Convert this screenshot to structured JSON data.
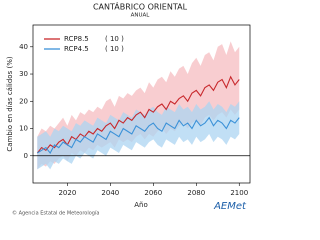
{
  "chart_data": {
    "type": "line",
    "title": "CANTÁBRICO ORIENTAL",
    "subtitle": "ANUAL",
    "x_label": "Año",
    "y_label": "Cambio en días cálidos (%)",
    "footer": "© Agencia Estatal de Meteorología",
    "logo": "AEMet",
    "x": [
      2006,
      2008,
      2010,
      2012,
      2014,
      2016,
      2018,
      2020,
      2022,
      2024,
      2026,
      2028,
      2030,
      2032,
      2034,
      2036,
      2038,
      2040,
      2042,
      2044,
      2046,
      2048,
      2050,
      2052,
      2054,
      2056,
      2058,
      2060,
      2062,
      2064,
      2066,
      2068,
      2070,
      2072,
      2074,
      2076,
      2078,
      2080,
      2082,
      2084,
      2086,
      2088,
      2090,
      2092,
      2094,
      2096,
      2098,
      2100
    ],
    "series": [
      {
        "name": "RCP8.5",
        "count_label": "( 10 )",
        "color": "#c8282c",
        "band_color": "#f5bcc0",
        "values": [
          1,
          3,
          2,
          4,
          3,
          5,
          6,
          4,
          7,
          6,
          8,
          7,
          9,
          8,
          10,
          9,
          11,
          12,
          10,
          13,
          12,
          14,
          13,
          15,
          16,
          14,
          17,
          16,
          18,
          19,
          17,
          20,
          19,
          21,
          22,
          20,
          23,
          24,
          22,
          25,
          26,
          24,
          27,
          28,
          25,
          29,
          26,
          28
        ],
        "upper": [
          7,
          10,
          9,
          11,
          10,
          12,
          14,
          11,
          15,
          13,
          16,
          15,
          17,
          16,
          18,
          17,
          20,
          21,
          18,
          22,
          21,
          23,
          22,
          24,
          25,
          23,
          27,
          25,
          28,
          29,
          27,
          31,
          29,
          32,
          33,
          30,
          34,
          36,
          33,
          37,
          38,
          35,
          40,
          41,
          37,
          42,
          38,
          40
        ],
        "lower": [
          -5,
          -3,
          -4,
          -2,
          -3,
          -1,
          0,
          -2,
          1,
          0,
          2,
          1,
          3,
          2,
          4,
          3,
          4,
          5,
          3,
          6,
          5,
          6,
          5,
          7,
          8,
          6,
          8,
          7,
          9,
          10,
          8,
          10,
          9,
          11,
          12,
          10,
          12,
          13,
          11,
          14,
          15,
          13,
          15,
          16,
          14,
          17,
          15,
          17
        ]
      },
      {
        "name": "RCP4.5",
        "count_label": "( 10 )",
        "color": "#3c92d8",
        "band_color": "#acd4f1",
        "values": [
          1,
          2,
          3,
          1,
          4,
          3,
          5,
          4,
          3,
          6,
          5,
          7,
          6,
          5,
          8,
          7,
          6,
          9,
          8,
          7,
          10,
          9,
          8,
          11,
          10,
          9,
          11,
          12,
          10,
          9,
          12,
          11,
          10,
          13,
          11,
          12,
          10,
          13,
          11,
          12,
          14,
          11,
          13,
          12,
          10,
          13,
          12,
          14
        ],
        "upper": [
          7,
          8,
          9,
          7,
          10,
          9,
          11,
          10,
          9,
          12,
          11,
          13,
          12,
          11,
          14,
          13,
          12,
          15,
          14,
          13,
          16,
          15,
          14,
          17,
          16,
          15,
          17,
          18,
          16,
          15,
          18,
          17,
          16,
          19,
          17,
          18,
          16,
          19,
          17,
          18,
          20,
          17,
          19,
          18,
          16,
          19,
          18,
          20
        ],
        "lower": [
          -5,
          -4,
          -3,
          -5,
          -2,
          -3,
          -1,
          -2,
          -3,
          0,
          -1,
          1,
          0,
          -1,
          2,
          1,
          0,
          3,
          2,
          1,
          4,
          3,
          2,
          5,
          4,
          3,
          5,
          6,
          4,
          3,
          6,
          5,
          4,
          7,
          5,
          6,
          4,
          7,
          5,
          6,
          8,
          5,
          7,
          6,
          4,
          7,
          6,
          8
        ]
      }
    ],
    "reference_line": 0,
    "xlim": [
      2004,
      2105
    ],
    "xticks": [
      2020,
      2040,
      2060,
      2080,
      2100
    ],
    "ylim": [
      -10,
      48
    ],
    "yticks": [
      0,
      10,
      20,
      30,
      40
    ]
  }
}
